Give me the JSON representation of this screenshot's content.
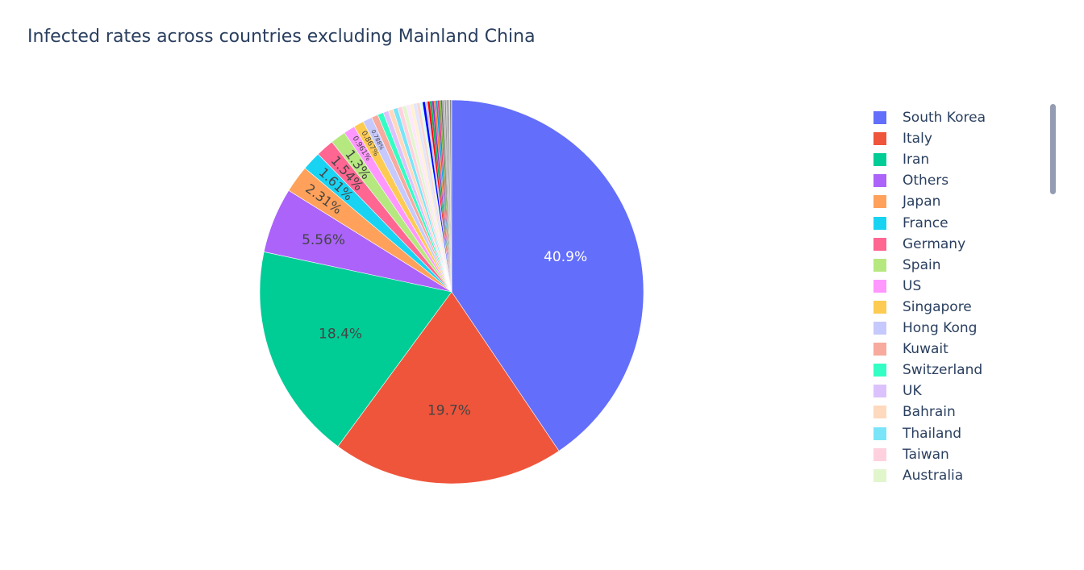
{
  "chart_data": {
    "type": "pie",
    "title": "Infected rates across countries excluding Mainland China",
    "slices": [
      {
        "label": "South Korea",
        "value": 40.9,
        "text": "40.9%",
        "color": "#636efa",
        "text_color": "#ffffff"
      },
      {
        "label": "Italy",
        "value": 19.7,
        "text": "19.7%",
        "color": "#EF553B",
        "text_color": "#444444"
      },
      {
        "label": "Iran",
        "value": 18.4,
        "text": "18.4%",
        "color": "#00cc96",
        "text_color": "#444444"
      },
      {
        "label": "Others",
        "value": 5.56,
        "text": "5.56%",
        "color": "#ab63fa",
        "text_color": "#444444"
      },
      {
        "label": "Japan",
        "value": 2.31,
        "text": "2.31%",
        "color": "#FFA15A",
        "text_color": "#444444"
      },
      {
        "label": "France",
        "value": 1.61,
        "text": "1.61%",
        "color": "#19d3f3",
        "text_color": "#444444"
      },
      {
        "label": "Germany",
        "value": 1.54,
        "text": "1.54%",
        "color": "#FF6692",
        "text_color": "#444444"
      },
      {
        "label": "Spain",
        "value": 1.3,
        "text": "1.3%",
        "color": "#B6E880",
        "text_color": "#444444"
      },
      {
        "label": "US",
        "value": 0.961,
        "text": "0.961%",
        "color": "#FF97FF",
        "text_color": "#444444"
      },
      {
        "label": "Singapore",
        "value": 0.867,
        "text": "0.867%",
        "color": "#FECB52",
        "text_color": "#444444"
      },
      {
        "label": "Hong Kong",
        "value": 0.788,
        "text": "0.788%",
        "color": "#c6c9fd",
        "text_color": "#444444"
      },
      {
        "label": "Kuwait",
        "value": 0.55,
        "text": "",
        "color": "#f7aa9d",
        "text_color": "#444444"
      },
      {
        "label": "Switzerland",
        "value": 0.5,
        "text": "",
        "color": "#33ffc4",
        "text_color": "#444444"
      },
      {
        "label": "UK",
        "value": 0.45,
        "text": "",
        "color": "#dcc2fd",
        "text_color": "#444444"
      },
      {
        "label": "Bahrain",
        "value": 0.42,
        "text": "",
        "color": "#ffd9bd",
        "text_color": "#444444"
      },
      {
        "label": "Thailand",
        "value": 0.4,
        "text": "",
        "color": "#7ae5f8",
        "text_color": "#444444"
      },
      {
        "label": "Taiwan",
        "value": 0.38,
        "text": "",
        "color": "#ffd1de",
        "text_color": "#444444"
      },
      {
        "label": "Australia",
        "value": 0.35,
        "text": "",
        "color": "#e2f6cd",
        "text_color": "#444444"
      }
    ],
    "other_slices": [
      {
        "value": 0.32,
        "color": "#ffe7ff"
      },
      {
        "value": 0.3,
        "color": "#fff2d3"
      },
      {
        "value": 0.28,
        "color": "#e3e5fe"
      },
      {
        "value": 0.26,
        "color": "#fbd7d0"
      },
      {
        "value": 0.24,
        "color": "#d6fff3"
      },
      {
        "value": 0.22,
        "color": "#0000ff"
      },
      {
        "value": 0.2,
        "color": "#c8c8ff"
      },
      {
        "value": 0.19,
        "color": "#ff0000"
      },
      {
        "value": 0.18,
        "color": "#00b05a"
      },
      {
        "value": 0.17,
        "color": "#9a30c8"
      },
      {
        "value": 0.16,
        "color": "#ff7a30"
      },
      {
        "value": 0.15,
        "color": "#00a0e0"
      },
      {
        "value": 0.14,
        "color": "#e03070"
      },
      {
        "value": 0.13,
        "color": "#70b030"
      },
      {
        "value": 0.12,
        "color": "#666666"
      },
      {
        "value": 0.11,
        "color": "#999999"
      },
      {
        "value": 0.1,
        "color": "#bbbbbb"
      },
      {
        "value": 0.1,
        "color": "#8a8a8a"
      },
      {
        "value": 0.09,
        "color": "#c8c8c8"
      },
      {
        "value": 0.09,
        "color": "#777777"
      },
      {
        "value": 0.08,
        "color": "#aaaaaa"
      },
      {
        "value": 0.08,
        "color": "#d9d9d9"
      },
      {
        "value": 0.07,
        "color": "#555555"
      },
      {
        "value": 0.07,
        "color": "#b5b5b5"
      }
    ],
    "legend": {
      "position": "right",
      "scrollable": true
    }
  }
}
